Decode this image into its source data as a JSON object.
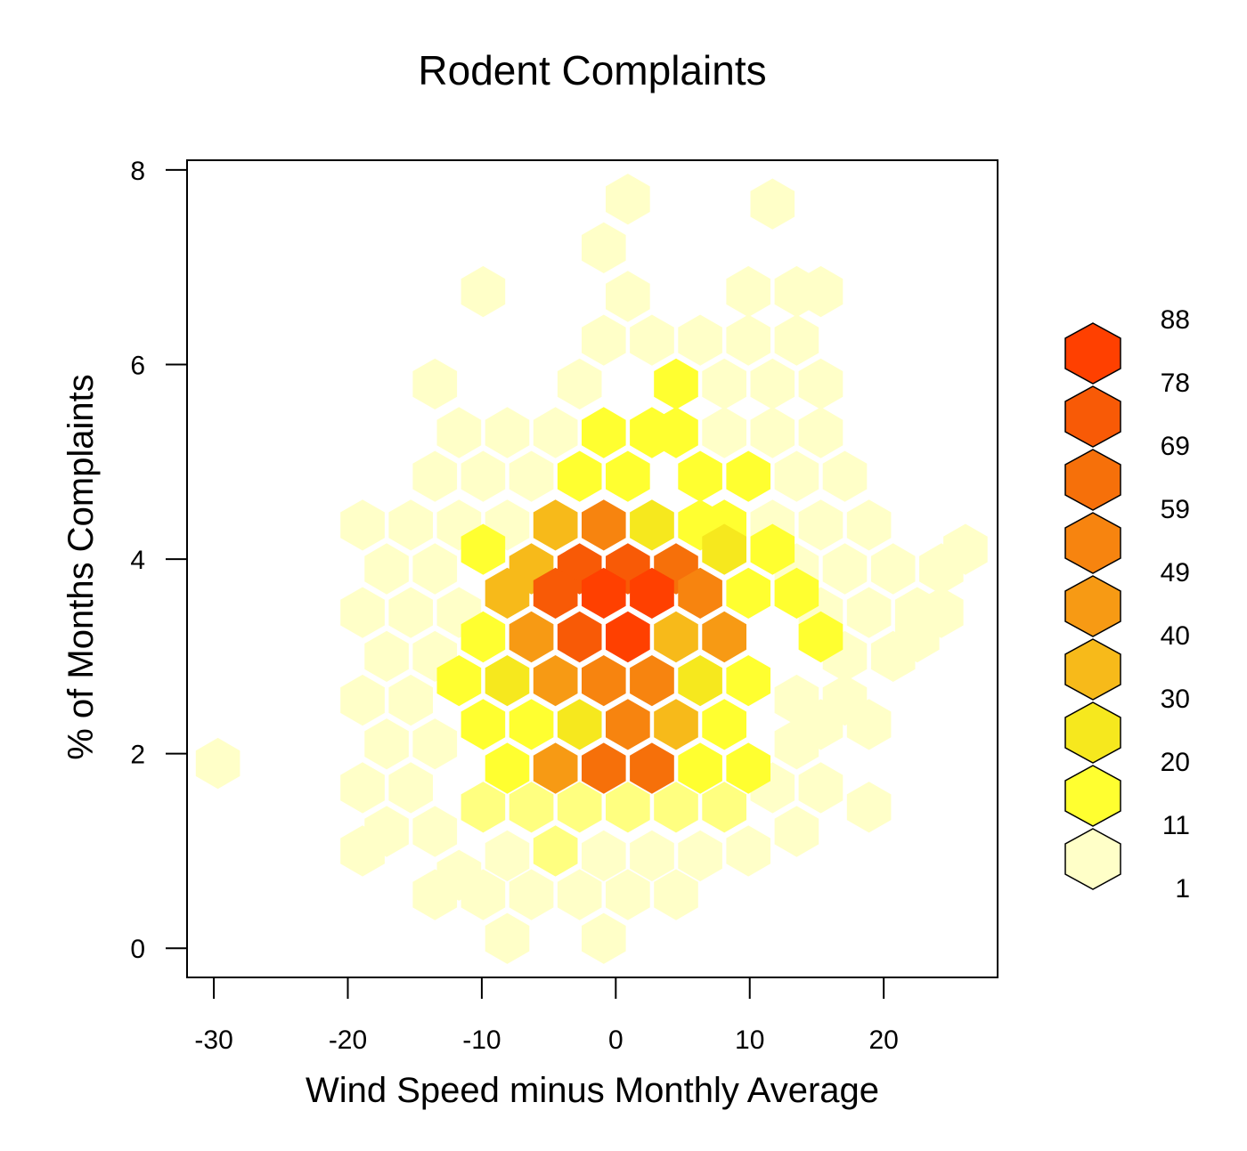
{
  "chart_data": {
    "type": "heatmap",
    "subtype": "hexbin",
    "title": "Rodent Complaints",
    "xlabel": "Wind Speed minus Monthly Average",
    "ylabel": "% of Months Complaints",
    "xlim": [
      -32,
      28.5
    ],
    "ylim": [
      -0.3,
      8.1
    ],
    "xticks": [
      -30,
      -20,
      -10,
      0,
      10,
      20
    ],
    "yticks": [
      0,
      2,
      4,
      6,
      8
    ],
    "xtick_labels": [
      "-30",
      "-20",
      "-10",
      "0",
      "10",
      "20"
    ],
    "ytick_labels": [
      "0",
      "2",
      "4",
      "6",
      "8"
    ],
    "grid": false,
    "legend_position": "right",
    "legend": {
      "breaks": [
        1,
        11,
        20,
        30,
        40,
        49,
        59,
        69,
        78,
        88
      ],
      "labels": [
        "1",
        "11",
        "20",
        "30",
        "40",
        "49",
        "59",
        "69",
        "78",
        "88"
      ],
      "colors": [
        "#FFFFC8",
        "#FFFF80",
        "#FFFF30",
        "#F6E81E",
        "#F7BA1A",
        "#F79A14",
        "#F7840F",
        "#F6700A",
        "#F85A06",
        "#FF4000"
      ]
    },
    "hex_size_x": 3.3,
    "cells": [
      {
        "x": 0.9,
        "y": 7.7,
        "level": 0
      },
      {
        "x": 11.7,
        "y": 7.65,
        "level": 0
      },
      {
        "x": -0.9,
        "y": 7.2,
        "level": 0
      },
      {
        "x": 0.9,
        "y": 6.7,
        "level": 0
      },
      {
        "x": -9.9,
        "y": 6.75,
        "level": 0
      },
      {
        "x": 9.9,
        "y": 6.75,
        "level": 0
      },
      {
        "x": 13.5,
        "y": 6.75,
        "level": 0
      },
      {
        "x": 15.3,
        "y": 6.75,
        "level": 0
      },
      {
        "x": -0.9,
        "y": 6.25,
        "level": 0
      },
      {
        "x": 2.7,
        "y": 6.25,
        "level": 0
      },
      {
        "x": 6.3,
        "y": 6.25,
        "level": 0
      },
      {
        "x": 9.9,
        "y": 6.25,
        "level": 0
      },
      {
        "x": 13.5,
        "y": 6.25,
        "level": 0
      },
      {
        "x": -13.5,
        "y": 5.8,
        "level": 0
      },
      {
        "x": -2.7,
        "y": 5.8,
        "level": 0
      },
      {
        "x": 8.1,
        "y": 5.8,
        "level": 0
      },
      {
        "x": 11.7,
        "y": 5.8,
        "level": 0
      },
      {
        "x": 15.3,
        "y": 5.8,
        "level": 0
      },
      {
        "x": 4.5,
        "y": 5.8,
        "level": 2
      },
      {
        "x": -11.7,
        "y": 5.3,
        "level": 0
      },
      {
        "x": -8.1,
        "y": 5.3,
        "level": 0
      },
      {
        "x": -4.5,
        "y": 5.3,
        "level": 0
      },
      {
        "x": 8.1,
        "y": 5.3,
        "level": 0
      },
      {
        "x": 11.7,
        "y": 5.3,
        "level": 0
      },
      {
        "x": 15.3,
        "y": 5.3,
        "level": 0
      },
      {
        "x": -0.9,
        "y": 5.3,
        "level": 2
      },
      {
        "x": 2.7,
        "y": 5.3,
        "level": 2
      },
      {
        "x": 4.5,
        "y": 5.3,
        "level": 2
      },
      {
        "x": -13.5,
        "y": 4.85,
        "level": 0
      },
      {
        "x": -9.9,
        "y": 4.85,
        "level": 0
      },
      {
        "x": -6.3,
        "y": 4.85,
        "level": 0
      },
      {
        "x": 13.5,
        "y": 4.85,
        "level": 0
      },
      {
        "x": 17.1,
        "y": 4.85,
        "level": 0
      },
      {
        "x": -2.7,
        "y": 4.85,
        "level": 2
      },
      {
        "x": 0.9,
        "y": 4.85,
        "level": 2
      },
      {
        "x": 6.3,
        "y": 4.85,
        "level": 2
      },
      {
        "x": 9.9,
        "y": 4.85,
        "level": 2
      },
      {
        "x": -18.9,
        "y": 4.35,
        "level": 0
      },
      {
        "x": -15.3,
        "y": 4.35,
        "level": 0
      },
      {
        "x": -11.7,
        "y": 4.35,
        "level": 0
      },
      {
        "x": -8.1,
        "y": 4.35,
        "level": 0
      },
      {
        "x": 11.7,
        "y": 4.35,
        "level": 0
      },
      {
        "x": 15.3,
        "y": 4.35,
        "level": 0
      },
      {
        "x": 18.9,
        "y": 4.35,
        "level": 0
      },
      {
        "x": -4.5,
        "y": 4.35,
        "level": 4
      },
      {
        "x": -0.9,
        "y": 4.35,
        "level": 6
      },
      {
        "x": 2.7,
        "y": 4.35,
        "level": 3
      },
      {
        "x": 8.1,
        "y": 4.35,
        "level": 2
      },
      {
        "x": 6.3,
        "y": 4.35,
        "level": 2
      },
      {
        "x": -17.1,
        "y": 3.9,
        "level": 0
      },
      {
        "x": -13.5,
        "y": 3.9,
        "level": 0
      },
      {
        "x": 13.5,
        "y": 3.9,
        "level": 0
      },
      {
        "x": 17.1,
        "y": 3.9,
        "level": 0
      },
      {
        "x": 20.7,
        "y": 3.9,
        "level": 0
      },
      {
        "x": 24.3,
        "y": 3.9,
        "level": 0
      },
      {
        "x": 26.1,
        "y": 4.1,
        "level": 0
      },
      {
        "x": -9.9,
        "y": 4.1,
        "level": 2
      },
      {
        "x": -6.3,
        "y": 3.9,
        "level": 4
      },
      {
        "x": -2.7,
        "y": 3.9,
        "level": 8
      },
      {
        "x": 0.9,
        "y": 3.9,
        "level": 8
      },
      {
        "x": 4.5,
        "y": 3.9,
        "level": 7
      },
      {
        "x": 8.1,
        "y": 4.1,
        "level": 3
      },
      {
        "x": 11.7,
        "y": 4.1,
        "level": 2
      },
      {
        "x": -18.9,
        "y": 3.45,
        "level": 0
      },
      {
        "x": -15.3,
        "y": 3.45,
        "level": 0
      },
      {
        "x": -11.7,
        "y": 3.45,
        "level": 0
      },
      {
        "x": 15.3,
        "y": 3.45,
        "level": 0
      },
      {
        "x": 18.9,
        "y": 3.45,
        "level": 0
      },
      {
        "x": 22.5,
        "y": 3.45,
        "level": 0
      },
      {
        "x": -8.1,
        "y": 3.65,
        "level": 4
      },
      {
        "x": -4.5,
        "y": 3.65,
        "level": 8
      },
      {
        "x": -0.9,
        "y": 3.65,
        "level": 9
      },
      {
        "x": 2.7,
        "y": 3.65,
        "level": 9
      },
      {
        "x": 6.3,
        "y": 3.65,
        "level": 6
      },
      {
        "x": 9.9,
        "y": 3.65,
        "level": 2
      },
      {
        "x": 13.5,
        "y": 3.65,
        "level": 2
      },
      {
        "x": -17.1,
        "y": 3.0,
        "level": 0
      },
      {
        "x": -13.5,
        "y": 3.0,
        "level": 0
      },
      {
        "x": 17.1,
        "y": 3.0,
        "level": 0
      },
      {
        "x": 20.7,
        "y": 3.0,
        "level": 0
      },
      {
        "x": 24.3,
        "y": 3.45,
        "level": 0
      },
      {
        "x": 22.5,
        "y": 3.2,
        "level": 0
      },
      {
        "x": -9.9,
        "y": 3.2,
        "level": 2
      },
      {
        "x": -6.3,
        "y": 3.2,
        "level": 5
      },
      {
        "x": -2.7,
        "y": 3.2,
        "level": 8
      },
      {
        "x": 0.9,
        "y": 3.2,
        "level": 9
      },
      {
        "x": 4.5,
        "y": 3.2,
        "level": 4
      },
      {
        "x": 8.1,
        "y": 3.2,
        "level": 5
      },
      {
        "x": 15.3,
        "y": 3.2,
        "level": 2
      },
      {
        "x": -18.9,
        "y": 2.55,
        "level": 0
      },
      {
        "x": -15.3,
        "y": 2.55,
        "level": 0
      },
      {
        "x": 13.5,
        "y": 2.55,
        "level": 0
      },
      {
        "x": 17.1,
        "y": 2.55,
        "level": 0
      },
      {
        "x": -11.7,
        "y": 2.75,
        "level": 2
      },
      {
        "x": -8.1,
        "y": 2.75,
        "level": 3
      },
      {
        "x": -4.5,
        "y": 2.75,
        "level": 5
      },
      {
        "x": -0.9,
        "y": 2.75,
        "level": 6
      },
      {
        "x": 2.7,
        "y": 2.75,
        "level": 6
      },
      {
        "x": 6.3,
        "y": 2.75,
        "level": 3
      },
      {
        "x": 9.9,
        "y": 2.75,
        "level": 2
      },
      {
        "x": -17.1,
        "y": 2.1,
        "level": 0
      },
      {
        "x": -13.5,
        "y": 2.1,
        "level": 0
      },
      {
        "x": 13.5,
        "y": 2.1,
        "level": 0
      },
      {
        "x": 18.9,
        "y": 2.3,
        "level": 0
      },
      {
        "x": 15.3,
        "y": 2.3,
        "level": 0
      },
      {
        "x": -9.9,
        "y": 2.3,
        "level": 2
      },
      {
        "x": -6.3,
        "y": 2.3,
        "level": 2
      },
      {
        "x": -2.7,
        "y": 2.3,
        "level": 3
      },
      {
        "x": 0.9,
        "y": 2.3,
        "level": 6
      },
      {
        "x": 4.5,
        "y": 2.3,
        "level": 4
      },
      {
        "x": 8.1,
        "y": 2.3,
        "level": 2
      },
      {
        "x": -29.7,
        "y": 1.9,
        "level": 0
      },
      {
        "x": -18.9,
        "y": 1.65,
        "level": 0
      },
      {
        "x": -15.3,
        "y": 1.65,
        "level": 0
      },
      {
        "x": 11.7,
        "y": 1.65,
        "level": 0
      },
      {
        "x": 15.3,
        "y": 1.65,
        "level": 0
      },
      {
        "x": -8.1,
        "y": 1.85,
        "level": 2
      },
      {
        "x": -4.5,
        "y": 1.85,
        "level": 5
      },
      {
        "x": -0.9,
        "y": 1.85,
        "level": 7
      },
      {
        "x": 2.7,
        "y": 1.85,
        "level": 7
      },
      {
        "x": 6.3,
        "y": 1.85,
        "level": 2
      },
      {
        "x": 9.9,
        "y": 1.85,
        "level": 2
      },
      {
        "x": -17.1,
        "y": 1.2,
        "level": 0
      },
      {
        "x": -13.5,
        "y": 1.2,
        "level": 0
      },
      {
        "x": 13.5,
        "y": 1.2,
        "level": 0
      },
      {
        "x": 18.9,
        "y": 1.45,
        "level": 0
      },
      {
        "x": -9.9,
        "y": 1.45,
        "level": 1
      },
      {
        "x": -6.3,
        "y": 1.45,
        "level": 1
      },
      {
        "x": -2.7,
        "y": 1.45,
        "level": 1
      },
      {
        "x": 0.9,
        "y": 1.45,
        "level": 1
      },
      {
        "x": 4.5,
        "y": 1.45,
        "level": 1
      },
      {
        "x": 8.1,
        "y": 1.45,
        "level": 1
      },
      {
        "x": -18.9,
        "y": 1.0,
        "level": 0
      },
      {
        "x": -11.7,
        "y": 0.75,
        "level": 0
      },
      {
        "x": -8.1,
        "y": 0.95,
        "level": 0
      },
      {
        "x": -0.9,
        "y": 0.95,
        "level": 0
      },
      {
        "x": 2.7,
        "y": 0.95,
        "level": 0
      },
      {
        "x": 6.3,
        "y": 0.95,
        "level": 0
      },
      {
        "x": 9.9,
        "y": 1.0,
        "level": 0
      },
      {
        "x": -4.5,
        "y": 1.0,
        "level": 1
      },
      {
        "x": -13.5,
        "y": 0.55,
        "level": 0
      },
      {
        "x": -9.9,
        "y": 0.55,
        "level": 0
      },
      {
        "x": -6.3,
        "y": 0.55,
        "level": 0
      },
      {
        "x": -2.7,
        "y": 0.55,
        "level": 0
      },
      {
        "x": 0.9,
        "y": 0.55,
        "level": 0
      },
      {
        "x": 4.5,
        "y": 0.55,
        "level": 0
      },
      {
        "x": -8.1,
        "y": 0.1,
        "level": 0
      },
      {
        "x": -0.9,
        "y": 0.1,
        "level": 0
      }
    ]
  }
}
